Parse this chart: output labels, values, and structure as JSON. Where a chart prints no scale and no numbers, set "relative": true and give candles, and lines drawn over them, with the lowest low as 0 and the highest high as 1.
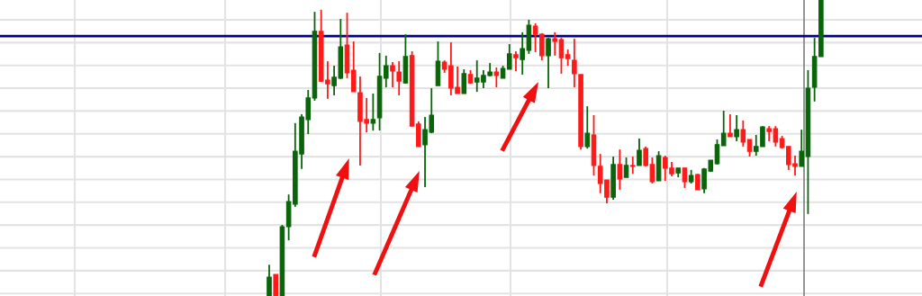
{
  "chart_data": {
    "type": "candlestick",
    "relative": true,
    "grid": true,
    "categories": [
      null,
      null,
      null,
      null,
      null,
      null,
      null,
      null,
      null,
      null,
      null,
      null,
      null,
      null,
      null,
      null,
      null,
      null,
      null,
      null,
      null,
      null,
      null,
      null,
      null,
      null,
      null,
      null,
      null,
      null,
      null,
      null,
      null,
      null,
      null,
      null,
      null,
      null,
      null,
      null,
      null,
      null,
      null,
      null,
      null,
      null,
      null,
      null,
      null,
      null,
      null,
      null,
      null,
      null,
      null,
      null,
      null,
      null,
      null,
      null,
      null,
      null,
      null,
      null,
      null,
      null,
      null,
      null,
      null,
      null,
      null,
      null,
      null,
      null,
      null,
      null,
      null,
      null,
      null,
      null,
      null,
      null,
      null,
      null,
      null,
      null
    ],
    "ohlc": [
      [
        0,
        0.106,
        0,
        0.064
      ],
      [
        0.073,
        0.073,
        0,
        0
      ],
      [
        0,
        0.24,
        0,
        0.234
      ],
      [
        0.234,
        0.343,
        0.188,
        0.319
      ],
      [
        0.31,
        0.584,
        0.301,
        0.489
      ],
      [
        0.48,
        0.614,
        0.429,
        0.605
      ],
      [
        0.596,
        0.696,
        0.547,
        0.669
      ],
      [
        0.669,
        0.96,
        0.66,
        0.894
      ],
      [
        0.894,
        0.967,
        0.723,
        0.726
      ],
      [
        0.729,
        0.793,
        0.666,
        0.717
      ],
      [
        0.711,
        0.778,
        0.678,
        0.739
      ],
      [
        0.736,
        0.936,
        0.733,
        0.842
      ],
      [
        0.848,
        0.957,
        0.736,
        0.754
      ],
      [
        0.763,
        0.86,
        0.69,
        0.69
      ],
      [
        0.687,
        0.742,
        0.441,
        0.59
      ],
      [
        0.596,
        0.669,
        0.553,
        0.584
      ],
      [
        0.584,
        0.684,
        0.559,
        0.596
      ],
      [
        0.602,
        0.821,
        0.559,
        0.742
      ],
      [
        0.736,
        0.812,
        0.705,
        0.778
      ],
      [
        0.778,
        0.79,
        0.705,
        0.76
      ],
      [
        0.757,
        0.793,
        0.678,
        0.726
      ],
      [
        0.72,
        0.884,
        0.717,
        0.809
      ],
      [
        0.812,
        0.827,
        0.574,
        0.574
      ],
      [
        0.581,
        0.59,
        0.505,
        0.505
      ],
      [
        0.511,
        0.605,
        0.368,
        0.562
      ],
      [
        0.553,
        0.702,
        0.55,
        0.611
      ],
      [
        0.711,
        0.86,
        0.711,
        0.793
      ],
      [
        0.79,
        0.796,
        0.754,
        0.766
      ],
      [
        0.778,
        0.857,
        0.678,
        0.702
      ],
      [
        0.705,
        0.775,
        0.684,
        0.684
      ],
      [
        0.684,
        0.766,
        0.684,
        0.751
      ],
      [
        0.748,
        0.763,
        0.717,
        0.72
      ],
      [
        0.723,
        0.796,
        0.69,
        0.736
      ],
      [
        0.723,
        0.763,
        0.702,
        0.745
      ],
      [
        0.745,
        0.787,
        0.742,
        0.757
      ],
      [
        0.757,
        0.772,
        0.705,
        0.745
      ],
      [
        0.736,
        0.778,
        0.736,
        0.769
      ],
      [
        0.766,
        0.851,
        0.766,
        0.818
      ],
      [
        0.815,
        0.827,
        0.76,
        0.805
      ],
      [
        0.799,
        0.891,
        0.748,
        0.836
      ],
      [
        0.83,
        0.933,
        0.818,
        0.915
      ],
      [
        0.912,
        0.921,
        0.824,
        0.884
      ],
      [
        0.884,
        0.888,
        0.796,
        0.812
      ],
      [
        0.812,
        0.872,
        0.702,
        0.869
      ],
      [
        0.869,
        0.891,
        0.812,
        0.86
      ],
      [
        0.866,
        0.872,
        0.751,
        0.805
      ],
      [
        0.815,
        0.833,
        0.778,
        0.802
      ],
      [
        0.796,
        0.869,
        0.705,
        0.751
      ],
      [
        0.748,
        0.748,
        0.495,
        0.505
      ],
      [
        0.505,
        0.641,
        0.498,
        0.55
      ],
      [
        0.544,
        0.611,
        0.407,
        0.441
      ],
      [
        0.438,
        0.48,
        0.347,
        0.38
      ],
      [
        0.392,
        0.392,
        0.313,
        0.334
      ],
      [
        0.334,
        0.471,
        0.325,
        0.444
      ],
      [
        0.444,
        0.495,
        0.359,
        0.395
      ],
      [
        0.401,
        0.468,
        0.401,
        0.441
      ],
      [
        0.441,
        0.471,
        0.413,
        0.438
      ],
      [
        0.441,
        0.532,
        0.441,
        0.492
      ],
      [
        0.498,
        0.505,
        0.438,
        0.441
      ],
      [
        0.444,
        0.468,
        0.38,
        0.386
      ],
      [
        0.389,
        0.489,
        0.389,
        0.474
      ],
      [
        0.468,
        0.474,
        0.389,
        0.432
      ],
      [
        0.432,
        0.453,
        0.404,
        0.413
      ],
      [
        0.416,
        0.432,
        0.401,
        0.432
      ],
      [
        0.432,
        0.432,
        0.365,
        0.386
      ],
      [
        0.386,
        0.426,
        0.38,
        0.407
      ],
      [
        0.41,
        0.413,
        0.359,
        0.359
      ],
      [
        0.362,
        0.432,
        0.347,
        0.429
      ],
      [
        0.422,
        0.459,
        0.419,
        0.459
      ],
      [
        0.447,
        0.529,
        0.444,
        0.511
      ],
      [
        0.508,
        0.626,
        0.508,
        0.55
      ],
      [
        0.55,
        0.614,
        0.538,
        0.538
      ],
      [
        0.538,
        0.611,
        0.523,
        0.562
      ],
      [
        0.562,
        0.593,
        0.505,
        0.52
      ],
      [
        0.529,
        0.529,
        0.471,
        0.489
      ],
      [
        0.489,
        0.544,
        0.474,
        0.505
      ],
      [
        0.505,
        0.574,
        0.505,
        0.571
      ],
      [
        0.565,
        0.574,
        0.523,
        0.556
      ],
      [
        0.565,
        0.574,
        0.505,
        0.52
      ],
      [
        0.532,
        0.541,
        0.498,
        0.502
      ],
      [
        0.505,
        0.505,
        0.426,
        0.444
      ],
      [
        0.447,
        0.474,
        0.407,
        0.438
      ],
      [
        0.438,
        0.562,
        0.438,
        0.489
      ],
      [
        0.471,
        0.763,
        0.277,
        0.702
      ],
      [
        0.705,
        0.872,
        0.657,
        0.809
      ],
      [
        0.809,
        1,
        0.809,
        1
      ]
    ],
    "colors": [
      "#0a640a",
      "#ff1a1a",
      "#0a640a",
      "#0a640a",
      "#0a640a",
      "#0a640a",
      "#0a640a",
      "#0a640a",
      "#ff1a1a",
      "#ff1a1a",
      "#0a640a",
      "#0a640a",
      "#ff1a1a",
      "#ff1a1a",
      "#ff1a1a",
      "#ff1a1a",
      "#0a640a",
      "#0a640a",
      "#0a640a",
      "#ff1a1a",
      "#ff1a1a",
      "#0a640a",
      "#ff1a1a",
      "#ff1a1a",
      "#0a640a",
      "#0a640a",
      "#0a640a",
      "#ff1a1a",
      "#ff1a1a",
      "#ff1a1a",
      "#0a640a",
      "#ff1a1a",
      "#0a640a",
      "#0a640a",
      "#0a640a",
      "#ff1a1a",
      "#0a640a",
      "#0a640a",
      "#ff1a1a",
      "#0a640a",
      "#0a640a",
      "#ff1a1a",
      "#ff1a1a",
      "#0a640a",
      "#ff1a1a",
      "#ff1a1a",
      "#ff1a1a",
      "#ff1a1a",
      "#ff1a1a",
      "#0a640a",
      "#ff1a1a",
      "#ff1a1a",
      "#ff1a1a",
      "#0a640a",
      "#ff1a1a",
      "#0a640a",
      "#ff1a1a",
      "#0a640a",
      "#ff1a1a",
      "#ff1a1a",
      "#0a640a",
      "#ff1a1a",
      "#ff1a1a",
      "#0a640a",
      "#ff1a1a",
      "#0a640a",
      "#ff1a1a",
      "#0a640a",
      "#0a640a",
      "#0a640a",
      "#0a640a",
      "#ff1a1a",
      "#0a640a",
      "#ff1a1a",
      "#ff1a1a",
      "#0a640a",
      "#0a640a",
      "#ff1a1a",
      "#ff1a1a",
      "#ff1a1a",
      "#ff1a1a",
      "#ff1a1a",
      "#0a640a",
      "#0a640a",
      "#0a640a",
      "#0a640a"
    ],
    "ref_lines": [
      {
        "axis": "y",
        "value": 0.878,
        "color": "#00008b"
      }
    ]
  }
}
